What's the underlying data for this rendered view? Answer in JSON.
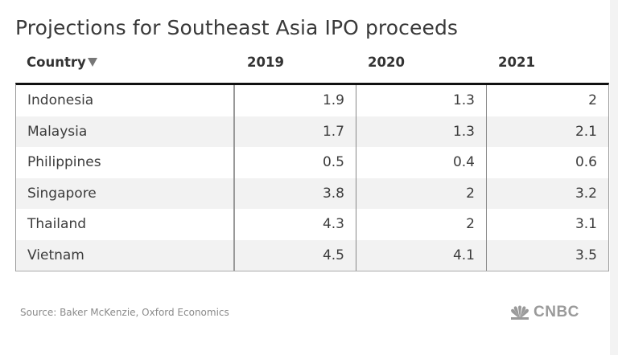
{
  "title": "Projections for Southeast Asia IPO proceeds",
  "header": {
    "country_label": "Country",
    "sort_icon": "sort-descending-triangle",
    "years": [
      "2019",
      "2020",
      "2021"
    ]
  },
  "rows": [
    {
      "country": "Indonesia",
      "v2019": "1.9",
      "v2020": "1.3",
      "v2021": "2"
    },
    {
      "country": "Malaysia",
      "v2019": "1.7",
      "v2020": "1.3",
      "v2021": "2.1"
    },
    {
      "country": "Philippines",
      "v2019": "0.5",
      "v2020": "0.4",
      "v2021": "0.6"
    },
    {
      "country": "Singapore",
      "v2019": "3.8",
      "v2020": "2",
      "v2021": "3.2"
    },
    {
      "country": "Thailand",
      "v2019": "4.3",
      "v2020": "2",
      "v2021": "3.1"
    },
    {
      "country": "Vietnam",
      "v2019": "4.5",
      "v2020": "4.1",
      "v2021": "3.5"
    }
  ],
  "source": "Source: Baker McKenzie, Oxford Economics",
  "logo": {
    "text": "CNBC",
    "icon": "peacock-icon"
  },
  "chart_data": {
    "type": "table",
    "title": "Projections for Southeast Asia IPO proceeds",
    "columns": [
      "Country",
      "2019",
      "2020",
      "2021"
    ],
    "categories": [
      "Indonesia",
      "Malaysia",
      "Philippines",
      "Singapore",
      "Thailand",
      "Vietnam"
    ],
    "series": [
      {
        "name": "2019",
        "values": [
          1.9,
          1.7,
          0.5,
          3.8,
          4.3,
          4.5
        ]
      },
      {
        "name": "2020",
        "values": [
          1.3,
          1.3,
          0.4,
          2,
          2,
          4.1
        ]
      },
      {
        "name": "2021",
        "values": [
          2,
          2.1,
          0.6,
          3.2,
          3.1,
          3.5
        ]
      }
    ],
    "source": "Source: Baker McKenzie, Oxford Economics"
  }
}
